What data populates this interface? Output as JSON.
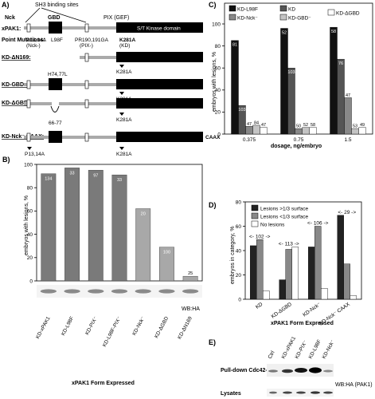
{
  "figure": {
    "panels": [
      "A)",
      "B)",
      "C)",
      "D)",
      "E)"
    ],
    "panel_a": {
      "top_notes": [
        "SH3 binding sites",
        "Nck",
        "GBD",
        "PIX (GEF)",
        "S/T Kinase domain"
      ],
      "construct_names": [
        "xPAK1:",
        "Point Mutations:",
        "KD-ΔN169:",
        "KD-GBD⁻:",
        "KD-ΔGBD:",
        "KD-Nck⁻ CAAX:"
      ],
      "mutation_notes": [
        "P13,14A",
        "(Nck-)",
        "L98F",
        "PR190,191GA",
        "(PIX-)",
        "K281A",
        "(KD)",
        "H74,77L",
        "66-77",
        "CAAX"
      ]
    },
    "panel_b": {
      "wb_label": "WB:HA",
      "xlabel": "xPAK1 Form Expressed",
      "ylabel": "embryos with lesions, %"
    },
    "panel_c": {
      "xlabel": "dosage, ng/embryo",
      "ylabel": "embryos with lesions, %"
    },
    "panel_d": {
      "xlabel": "xPAK1 Form Expressed",
      "ylabel": "embryos in category, %"
    },
    "panel_e": {
      "lanes": [
        "Ctrl",
        "KD-xPAK1",
        "KD-PIX⁻",
        "KD-L98F",
        "KD-Nck⁻"
      ],
      "rows": [
        "Pull-down Cdc42-GTP",
        "Lysates"
      ],
      "wb_label": "WB:HA (PAK1)"
    }
  },
  "chart_data": [
    {
      "panel": "B",
      "type": "bar",
      "categories": [
        "KD-xPAK1",
        "KD-L98F",
        "KD-PIX⁻",
        "KD-L98F-PIX⁻",
        "KD-Nck⁻",
        "KD-ΔGBD",
        "KD-ΔN169"
      ],
      "values": [
        92,
        97,
        95,
        91,
        62,
        29,
        4
      ],
      "n_labels": [
        "134",
        "33",
        "97",
        "33",
        "20",
        "100",
        "25"
      ],
      "ylim": [
        0,
        100
      ],
      "yticks": [
        0,
        20,
        40,
        60,
        80,
        100
      ],
      "xlabel": "xPAK1 Form Expressed",
      "ylabel": "embryos with lesions, %"
    },
    {
      "panel": "C",
      "type": "bar",
      "categories": [
        "0.375",
        "0.75",
        "1.5"
      ],
      "series": [
        {
          "name": "KD-L98F",
          "values": [
            85,
            96,
            97
          ],
          "n": [
            "81",
            "52",
            "58"
          ]
        },
        {
          "name": "KD",
          "values": [
            26,
            60,
            68
          ],
          "n": [
            "103",
            "103",
            "76"
          ]
        },
        {
          "name": "KD-Nck⁻",
          "values": [
            7,
            5,
            33
          ],
          "n": [
            "47",
            "50",
            "47"
          ]
        },
        {
          "name": "KD-GBD⁻",
          "values": [
            8,
            6,
            5
          ],
          "n": [
            "84",
            "52",
            "53"
          ]
        },
        {
          "name": "KD-ΔGBD",
          "values": [
            6,
            6,
            6
          ],
          "n": [
            "47",
            "58",
            "49"
          ]
        }
      ],
      "ylim": [
        0,
        100
      ],
      "yticks": [
        0,
        20,
        40,
        60,
        80,
        100
      ],
      "xlabel": "dosage, ng/embryo",
      "ylabel": "embryos with lesions, %"
    },
    {
      "panel": "D",
      "type": "bar",
      "categories": [
        "KD",
        "KD-ΔGBD",
        "KD-Nck⁻",
        "KD-Nck⁻ CAAX"
      ],
      "series": [
        {
          "name": "Lesions >1/3 surface",
          "values": [
            44,
            16,
            43,
            69
          ]
        },
        {
          "name": "Lesions <1/3 surface",
          "values": [
            49,
            41,
            60,
            29
          ]
        },
        {
          "name": "No lesions",
          "values": [
            7,
            43,
            9,
            3
          ]
        }
      ],
      "n_labels": [
        "102",
        "113",
        "106",
        "29"
      ],
      "ylim": [
        0,
        80
      ],
      "yticks": [
        0,
        20,
        40,
        60,
        80
      ],
      "xlabel": "xPAK1 Form Expressed",
      "ylabel": "embryos in category, %"
    }
  ]
}
